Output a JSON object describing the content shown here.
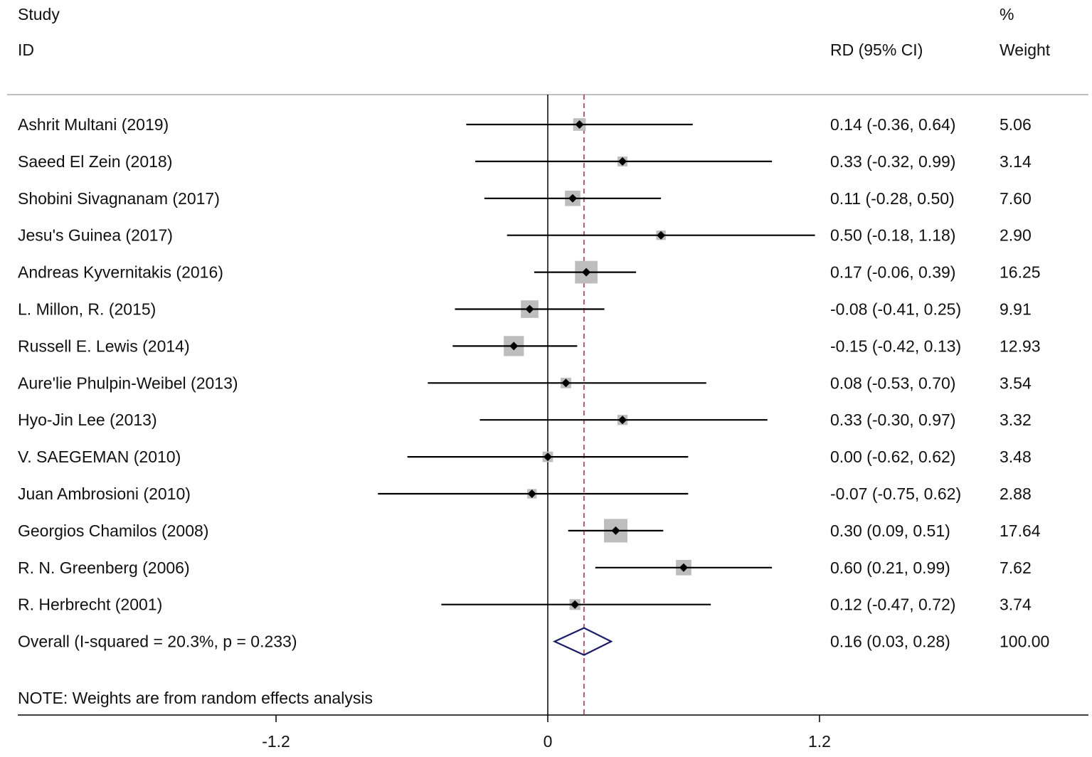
{
  "chart_data": {
    "type": "forest",
    "headers": {
      "study_line1": "Study",
      "study_line2": "ID",
      "effect": "RD (95% CI)",
      "weight_line1": "%",
      "weight_line2": "Weight"
    },
    "studies": [
      {
        "name": "Ashrit Multani (2019)",
        "rd": 0.14,
        "lo": -0.36,
        "hi": 0.64,
        "weight": 5.06,
        "ci_text": "0.14 (-0.36, 0.64)",
        "weight_text": "5.06"
      },
      {
        "name": "Saeed El Zein (2018)",
        "rd": 0.33,
        "lo": -0.32,
        "hi": 0.99,
        "weight": 3.14,
        "ci_text": "0.33 (-0.32, 0.99)",
        "weight_text": "3.14"
      },
      {
        "name": "Shobini Sivagnanam (2017)",
        "rd": 0.11,
        "lo": -0.28,
        "hi": 0.5,
        "weight": 7.6,
        "ci_text": "0.11 (-0.28, 0.50)",
        "weight_text": "7.60"
      },
      {
        "name": "Jesu's Guinea (2017)",
        "rd": 0.5,
        "lo": -0.18,
        "hi": 1.18,
        "weight": 2.9,
        "ci_text": "0.50 (-0.18, 1.18)",
        "weight_text": "2.90"
      },
      {
        "name": "Andreas Kyvernitakis (2016)",
        "rd": 0.17,
        "lo": -0.06,
        "hi": 0.39,
        "weight": 16.25,
        "ci_text": "0.17 (-0.06, 0.39)",
        "weight_text": "16.25"
      },
      {
        "name": "L. Millon, R. (2015)",
        "rd": -0.08,
        "lo": -0.41,
        "hi": 0.25,
        "weight": 9.91,
        "ci_text": "-0.08 (-0.41, 0.25)",
        "weight_text": "9.91"
      },
      {
        "name": "Russell E. Lewis (2014)",
        "rd": -0.15,
        "lo": -0.42,
        "hi": 0.13,
        "weight": 12.93,
        "ci_text": "-0.15 (-0.42, 0.13)",
        "weight_text": "12.93"
      },
      {
        "name": "Aure'lie Phulpin-Weibel (2013)",
        "rd": 0.08,
        "lo": -0.53,
        "hi": 0.7,
        "weight": 3.54,
        "ci_text": "0.08 (-0.53, 0.70)",
        "weight_text": "3.54"
      },
      {
        "name": "Hyo-Jin Lee (2013)",
        "rd": 0.33,
        "lo": -0.3,
        "hi": 0.97,
        "weight": 3.32,
        "ci_text": "0.33 (-0.30, 0.97)",
        "weight_text": "3.32"
      },
      {
        "name": "V. SAEGEMAN (2010)",
        "rd": 0.0,
        "lo": -0.62,
        "hi": 0.62,
        "weight": 3.48,
        "ci_text": "0.00 (-0.62, 0.62)",
        "weight_text": "3.48"
      },
      {
        "name": "Juan Ambrosioni (2010)",
        "rd": -0.07,
        "lo": -0.75,
        "hi": 0.62,
        "weight": 2.88,
        "ci_text": "-0.07 (-0.75, 0.62)",
        "weight_text": "2.88"
      },
      {
        "name": "Georgios Chamilos (2008)",
        "rd": 0.3,
        "lo": 0.09,
        "hi": 0.51,
        "weight": 17.64,
        "ci_text": "0.30 (0.09, 0.51)",
        "weight_text": "17.64"
      },
      {
        "name": "R. N. Greenberg (2006)",
        "rd": 0.6,
        "lo": 0.21,
        "hi": 0.99,
        "weight": 7.62,
        "ci_text": "0.60 (0.21, 0.99)",
        "weight_text": "7.62"
      },
      {
        "name": "R. Herbrecht (2001)",
        "rd": 0.12,
        "lo": -0.47,
        "hi": 0.72,
        "weight": 3.74,
        "ci_text": "0.12 (-0.47, 0.72)",
        "weight_text": "3.74"
      }
    ],
    "overall": {
      "label": "Overall  (I-squared = 20.3%, p = 0.233)",
      "rd": 0.16,
      "lo": 0.03,
      "hi": 0.28,
      "ci_text": "0.16 (0.03, 0.28)",
      "weight_text": "100.00"
    },
    "note": "NOTE: Weights are from random effects analysis",
    "x_ticks": [
      -1.2,
      0,
      1.2
    ],
    "x_tick_labels": [
      "-1.2",
      "0",
      "1.2"
    ],
    "xlim": [
      -1.2,
      1.2
    ],
    "colors": {
      "box": "#bdbdbd",
      "point": "#000000",
      "pooled_line": "#a33040",
      "diamond": "#1b1b6b"
    }
  }
}
